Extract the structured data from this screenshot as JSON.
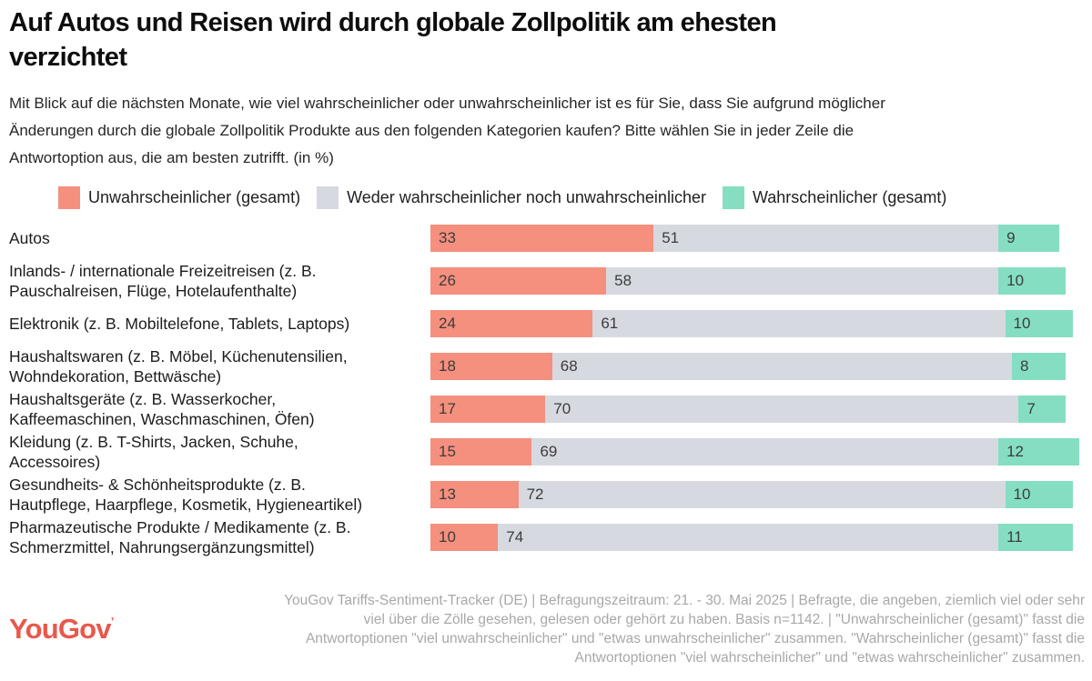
{
  "header": {
    "title": "Auf Autos und Reisen wird durch globale Zollpolitik am ehesten\nverzichtet",
    "subtitle": "Mit Blick auf die nächsten Monate, wie viel wahrscheinlicher oder unwahrscheinlicher ist es für Sie, dass Sie aufgrund möglicher\nÄnderungen durch die globale Zollpolitik Produkte aus den folgenden Kategorien kaufen? Bitte wählen Sie in jeder Zeile die\nAntwortoption aus, die am besten zutrifft. (in %)"
  },
  "colors": {
    "unlikely": "#f58f7e",
    "neutral": "#d6d9e0",
    "likely": "#85dec2",
    "logo_red": "#e8584c"
  },
  "legend": {
    "items": [
      {
        "label": "Unwahrscheinlicher (gesamt)",
        "color_key": "unlikely"
      },
      {
        "label": "Weder wahrscheinlicher noch unwahrscheinlicher",
        "color_key": "neutral"
      },
      {
        "label": "Wahrscheinlicher (gesamt)",
        "color_key": "likely"
      }
    ]
  },
  "chart_data": {
    "type": "bar",
    "stacked": true,
    "orientation": "horizontal",
    "unit": "%",
    "xlim": [
      0,
      100
    ],
    "legend_position": "top",
    "grid": false,
    "series_names": [
      "Unwahrscheinlicher (gesamt)",
      "Weder wahrscheinlicher noch unwahrscheinlicher",
      "Wahrscheinlicher (gesamt)"
    ],
    "categories": [
      "Autos",
      "Inlands- / internationale Freizeitreisen (z. B. Pauschalreisen, Flüge, Hotelaufenthalte)",
      "Elektronik (z. B. Mobiltelefone, Tablets, Laptops)",
      "Haushaltswaren (z. B. Möbel, Küchenutensilien, Wohndekoration, Bettwäsche)",
      "Haushaltsgeräte (z. B. Wasserkocher, Kaffeemaschinen, Waschmaschinen, Öfen)",
      "Kleidung (z. B. T-Shirts, Jacken, Schuhe, Accessoires)",
      "Gesundheits- & Schönheitsprodukte (z. B. Hautpflege, Haarpflege, Kosmetik, Hygieneartikel)",
      "Pharmazeutische Produkte / Medikamente (z. B. Schmerzmittel, Nahrungsergänzungsmittel)"
    ],
    "rows": [
      {
        "label": "Autos",
        "values": [
          33,
          51,
          9
        ]
      },
      {
        "label": "Inlands- / internationale Freizeitreisen (z. B.\nPauschalreisen, Flüge, Hotelaufenthalte)",
        "values": [
          26,
          58,
          10
        ]
      },
      {
        "label": "Elektronik (z. B. Mobiltelefone, Tablets, Laptops)",
        "values": [
          24,
          61,
          10
        ]
      },
      {
        "label": "Haushaltswaren (z. B. Möbel, Küchenutensilien,\nWohndekoration, Bettwäsche)",
        "values": [
          18,
          68,
          8
        ]
      },
      {
        "label": "Haushaltsgeräte (z. B. Wasserkocher,\nKaffeemaschinen, Waschmaschinen, Öfen)",
        "values": [
          17,
          70,
          7
        ]
      },
      {
        "label": "Kleidung (z. B. T-Shirts, Jacken, Schuhe,\nAccessoires)",
        "values": [
          15,
          69,
          12
        ]
      },
      {
        "label": "Gesundheits- & Schönheitsprodukte (z. B.\nHautpflege, Haarpflege, Kosmetik, Hygieneartikel)",
        "values": [
          13,
          72,
          10
        ]
      },
      {
        "label": "Pharmazeutische Produkte / Medikamente (z. B.\nSchmerzmittel, Nahrungsergänzungsmittel)",
        "values": [
          10,
          74,
          11
        ]
      }
    ]
  },
  "footer": {
    "logo_text": "YouGov",
    "lines": [
      "YouGov Tariffs-Sentiment-Tracker (DE) | Befragungszeitraum: 21. - 30. Mai 2025 | Befragte, die angeben, ziemlich viel oder sehr",
      "viel über die Zölle gesehen, gelesen oder gehört zu haben. Basis n=1142. | \"Unwahrscheinlicher (gesamt)\" fasst die",
      "Antwortoptionen \"viel unwahrscheinlicher\" und \"etwas unwahrscheinlicher\" zusammen. \"Wahrscheinlicher (gesamt)\" fasst die",
      "Antwortoptionen \"viel wahrscheinlicher\" und \"etwas wahrscheinlicher\" zusammen."
    ]
  }
}
